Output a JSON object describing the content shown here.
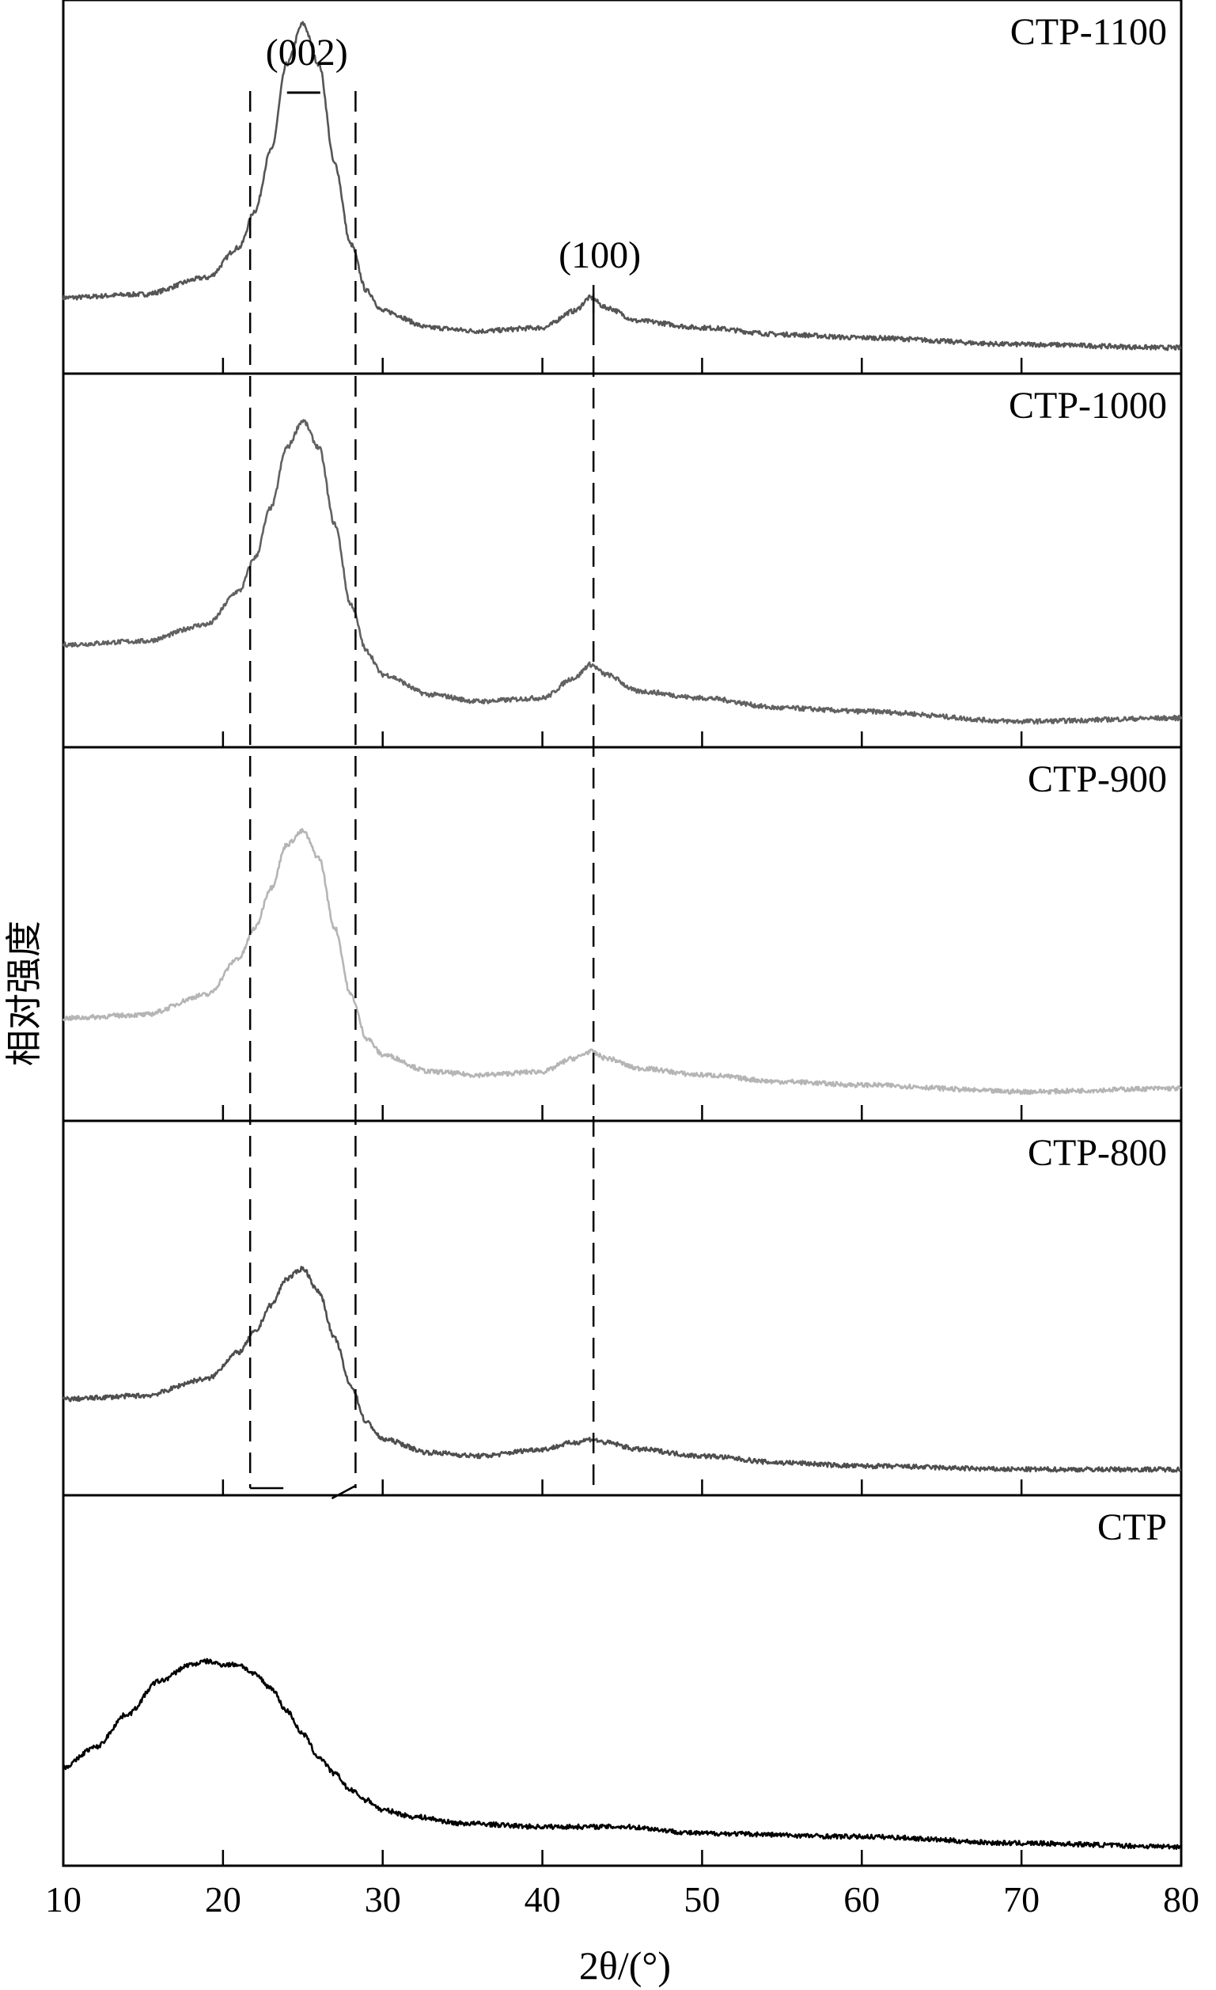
{
  "chart_data": {
    "type": "line",
    "title": "",
    "xlabel": "2θ/(°)",
    "ylabel": "相对强度",
    "xlim": [
      10,
      80
    ],
    "xticks": [
      10,
      20,
      30,
      40,
      50,
      60,
      70,
      80
    ],
    "xtick_labels": [
      "10",
      "20",
      "30",
      "40",
      "50",
      "60",
      "70",
      "80"
    ],
    "grid": false,
    "legend": "none",
    "reference_lines": [
      21.7,
      28.3,
      43.2
    ],
    "annotations": [
      {
        "text": "(002)",
        "x": 25.0
      },
      {
        "text": "(100)",
        "x": 43.2
      }
    ],
    "series": [
      {
        "name": "CTP-1100",
        "color": "#555555",
        "x": [
          10,
          15,
          19,
          21,
          22,
          23,
          24,
          25,
          26,
          27,
          28,
          29,
          30,
          33,
          36,
          40,
          42,
          43,
          44,
          46,
          50,
          55,
          60,
          70,
          80
        ],
        "y": [
          0.18,
          0.19,
          0.24,
          0.33,
          0.44,
          0.62,
          0.88,
          1.0,
          0.88,
          0.58,
          0.34,
          0.2,
          0.14,
          0.09,
          0.08,
          0.09,
          0.14,
          0.18,
          0.15,
          0.11,
          0.09,
          0.07,
          0.06,
          0.04,
          0.03
        ]
      },
      {
        "name": "CTP-1000",
        "color": "#616161",
        "x": [
          10,
          15,
          19,
          21,
          22,
          23,
          24,
          25,
          26,
          27,
          28,
          29,
          30,
          33,
          36,
          40,
          42,
          43,
          44,
          46,
          50,
          55,
          60,
          70,
          80
        ],
        "y": [
          0.26,
          0.27,
          0.32,
          0.42,
          0.52,
          0.67,
          0.85,
          0.93,
          0.85,
          0.62,
          0.38,
          0.24,
          0.17,
          0.11,
          0.09,
          0.1,
          0.16,
          0.2,
          0.17,
          0.12,
          0.1,
          0.07,
          0.06,
          0.03,
          0.04
        ]
      },
      {
        "name": "CTP-900",
        "color": "#b5b5b5",
        "x": [
          10,
          15,
          19,
          21,
          22,
          23,
          24,
          25,
          26,
          27,
          28,
          29,
          30,
          33,
          36,
          40,
          42,
          43,
          44,
          46,
          50,
          55,
          60,
          70,
          80
        ],
        "y": [
          0.26,
          0.27,
          0.33,
          0.44,
          0.53,
          0.65,
          0.78,
          0.82,
          0.74,
          0.53,
          0.33,
          0.2,
          0.15,
          0.1,
          0.09,
          0.1,
          0.14,
          0.16,
          0.14,
          0.11,
          0.09,
          0.07,
          0.06,
          0.04,
          0.05
        ]
      },
      {
        "name": "CTP-800",
        "color": "#4e4e4e",
        "x": [
          10,
          15,
          19,
          21,
          22,
          23,
          24,
          25,
          26,
          27,
          28,
          29,
          30,
          33,
          36,
          40,
          42,
          43,
          44,
          46,
          50,
          55,
          60,
          70,
          80
        ],
        "y": [
          0.24,
          0.25,
          0.3,
          0.38,
          0.44,
          0.52,
          0.6,
          0.63,
          0.56,
          0.42,
          0.28,
          0.17,
          0.12,
          0.08,
          0.07,
          0.09,
          0.11,
          0.12,
          0.11,
          0.09,
          0.07,
          0.05,
          0.04,
          0.03,
          0.03
        ]
      },
      {
        "name": "CTP",
        "color": "#000000",
        "x": [
          10,
          12,
          14,
          16,
          18,
          19,
          20,
          21,
          22,
          23,
          24,
          25,
          26,
          27,
          28,
          29,
          30,
          32,
          35,
          40,
          45,
          50,
          60,
          70,
          80
        ],
        "y": [
          0.25,
          0.31,
          0.41,
          0.51,
          0.56,
          0.57,
          0.56,
          0.56,
          0.53,
          0.49,
          0.42,
          0.35,
          0.28,
          0.23,
          0.18,
          0.15,
          0.12,
          0.1,
          0.08,
          0.07,
          0.07,
          0.05,
          0.04,
          0.02,
          0.01
        ]
      }
    ]
  }
}
